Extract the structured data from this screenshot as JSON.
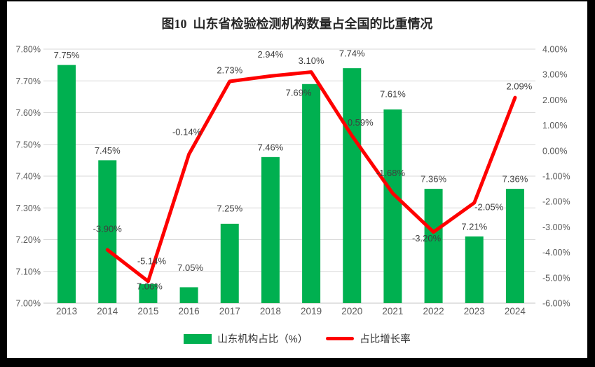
{
  "title": "图10  山东省检验检测机构数量占全国的比重情况",
  "frame": {
    "border_color": "#000000",
    "background": "#ffffff"
  },
  "chart_data": {
    "type": "bar-line-combo",
    "title": "图10  山东省检验检测机构数量占全国的比重情况",
    "categories": [
      "2013",
      "2014",
      "2015",
      "2016",
      "2017",
      "2018",
      "2019",
      "2020",
      "2021",
      "2022",
      "2023",
      "2024"
    ],
    "series": [
      {
        "name": "山东机构占比（%）",
        "type": "bar",
        "axis": "left",
        "color": "#00B050",
        "values": [
          7.75,
          7.45,
          7.06,
          7.05,
          7.25,
          7.46,
          7.69,
          7.74,
          7.61,
          7.36,
          7.21,
          7.36
        ]
      },
      {
        "name": "占比增长率",
        "type": "line",
        "axis": "right",
        "color": "#FE0000",
        "values": [
          null,
          -3.9,
          -5.14,
          -0.14,
          2.73,
          2.94,
          3.1,
          0.59,
          -1.68,
          -3.2,
          -2.05,
          2.09
        ]
      }
    ],
    "left_axis": {
      "min": 7.0,
      "max": 7.8,
      "step": 0.1,
      "ticks": [
        "7.80%",
        "7.70%",
        "7.60%",
        "7.50%",
        "7.40%",
        "7.30%",
        "7.20%",
        "7.10%",
        "7.00%"
      ]
    },
    "right_axis": {
      "min": -6.0,
      "max": 4.0,
      "step": 1.0,
      "ticks": [
        "4.00%",
        "3.00%",
        "2.00%",
        "1.00%",
        "0.00%",
        "-1.00%",
        "-2.00%",
        "-3.00%",
        "-4.00%",
        "-5.00%",
        "-6.00%"
      ]
    },
    "grid": true,
    "gridline_color": "#d9d9d9",
    "legend_position": "bottom",
    "label_offsets": {
      "bar": {
        "2015": [
          2,
          17
        ],
        "2016": [
          2,
          -14
        ],
        "2017": [
          0,
          -8
        ],
        "2019": [
          -18,
          26
        ],
        "2020": [
          0,
          -7
        ],
        "2021": [
          0,
          -8
        ]
      },
      "line": {
        "2014": [
          0,
          -14
        ],
        "2015": [
          5,
          -13
        ],
        "2016": [
          -3,
          -16
        ],
        "2018": [
          0,
          -15
        ],
        "2020": [
          12,
          -3
        ],
        "2021": [
          -3,
          -13
        ],
        "2022": [
          -10,
          25
        ],
        "2023": [
          21,
          22
        ],
        "2024": [
          6,
          0
        ]
      }
    }
  },
  "legend": {
    "items": [
      {
        "label": "山东机构占比（%）",
        "color": "#00B050",
        "swatch": "rect"
      },
      {
        "label": "占比增长率",
        "color": "#FE0000",
        "swatch": "line"
      }
    ]
  }
}
